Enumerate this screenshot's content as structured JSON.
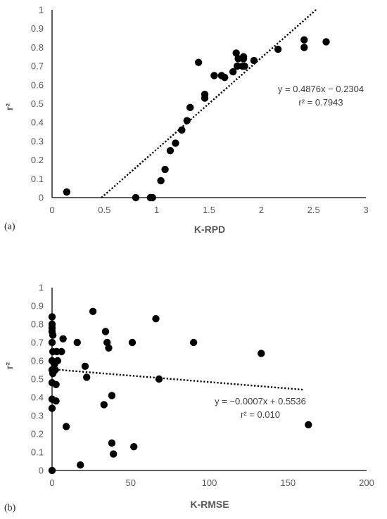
{
  "chart_data": [
    {
      "type": "scatter",
      "panel_label": "(a)",
      "xlabel": "K-RPD",
      "ylabel": "r²",
      "xlim": [
        0,
        3
      ],
      "ylim": [
        0,
        1
      ],
      "x_ticks": [
        "0",
        "0.5",
        "1",
        "1.5",
        "2",
        "2.5",
        "3"
      ],
      "y_ticks": [
        "0",
        "0.1",
        "0.2",
        "0.3",
        "0.4",
        "0.5",
        "0.6",
        "0.7",
        "0.8",
        "0.9",
        "1"
      ],
      "grid": false,
      "trendline": {
        "slope": 0.4876,
        "intercept": -0.2304,
        "style": "dotted"
      },
      "equation": "y = 0.4876x − 0.2304",
      "r2_text": "r² = 0.7943",
      "points": [
        {
          "x": 0.14,
          "y": 0.03
        },
        {
          "x": 0.8,
          "y": 0.0
        },
        {
          "x": 0.94,
          "y": 0.0
        },
        {
          "x": 0.96,
          "y": 0.0
        },
        {
          "x": 1.04,
          "y": 0.09
        },
        {
          "x": 1.08,
          "y": 0.15
        },
        {
          "x": 1.13,
          "y": 0.25
        },
        {
          "x": 1.18,
          "y": 0.29
        },
        {
          "x": 1.24,
          "y": 0.36
        },
        {
          "x": 1.29,
          "y": 0.41
        },
        {
          "x": 1.32,
          "y": 0.48
        },
        {
          "x": 1.4,
          "y": 0.72
        },
        {
          "x": 1.46,
          "y": 0.53
        },
        {
          "x": 1.46,
          "y": 0.55
        },
        {
          "x": 1.55,
          "y": 0.65
        },
        {
          "x": 1.62,
          "y": 0.65
        },
        {
          "x": 1.65,
          "y": 0.64
        },
        {
          "x": 1.73,
          "y": 0.67
        },
        {
          "x": 1.76,
          "y": 0.77
        },
        {
          "x": 1.77,
          "y": 0.7
        },
        {
          "x": 1.78,
          "y": 0.74
        },
        {
          "x": 1.82,
          "y": 0.7
        },
        {
          "x": 1.83,
          "y": 0.74
        },
        {
          "x": 1.83,
          "y": 0.75
        },
        {
          "x": 1.84,
          "y": 0.7
        },
        {
          "x": 1.93,
          "y": 0.73
        },
        {
          "x": 2.16,
          "y": 0.79
        },
        {
          "x": 2.41,
          "y": 0.84
        },
        {
          "x": 2.41,
          "y": 0.8
        },
        {
          "x": 2.62,
          "y": 0.83
        }
      ]
    },
    {
      "type": "scatter",
      "panel_label": "(b)",
      "xlabel": "K-RMSE",
      "ylabel": "r²",
      "xlim": [
        0,
        200
      ],
      "ylim": [
        0,
        1
      ],
      "x_ticks": [
        "0",
        "50",
        "100",
        "150",
        "200"
      ],
      "y_ticks": [
        "0",
        "0.1",
        "0.2",
        "0.3",
        "0.4",
        "0.5",
        "0.6",
        "0.7",
        "0.8",
        "0.9",
        "1"
      ],
      "grid": false,
      "trendline": {
        "slope": -0.0007,
        "intercept": 0.5536,
        "style": "dotted",
        "x_range": [
          0,
          160
        ]
      },
      "equation": "y = −0.0007x + 0.5536",
      "r2_text": "r² = 0.010",
      "points": [
        {
          "x": 0,
          "y": 0.84
        },
        {
          "x": 0,
          "y": 0.8
        },
        {
          "x": 0,
          "y": 0.78
        },
        {
          "x": 0,
          "y": 0.76
        },
        {
          "x": 0.5,
          "y": 0.74
        },
        {
          "x": 0,
          "y": 0.7
        },
        {
          "x": 0.5,
          "y": 0.65
        },
        {
          "x": 0,
          "y": 0.6
        },
        {
          "x": 0,
          "y": 0.55
        },
        {
          "x": 0.5,
          "y": 0.53
        },
        {
          "x": 0,
          "y": 0.48
        },
        {
          "x": 0,
          "y": 0.39
        },
        {
          "x": 0,
          "y": 0.34
        },
        {
          "x": 0,
          "y": 0.0
        },
        {
          "x": 1.5,
          "y": 0.58
        },
        {
          "x": 2,
          "y": 0.55
        },
        {
          "x": 2.5,
          "y": 0.47
        },
        {
          "x": 2.5,
          "y": 0.38
        },
        {
          "x": 3,
          "y": 0.65
        },
        {
          "x": 3.5,
          "y": 0.6
        },
        {
          "x": 6,
          "y": 0.65
        },
        {
          "x": 7,
          "y": 0.72
        },
        {
          "x": 9,
          "y": 0.24
        },
        {
          "x": 16,
          "y": 0.7
        },
        {
          "x": 18,
          "y": 0.03
        },
        {
          "x": 21,
          "y": 0.57
        },
        {
          "x": 22,
          "y": 0.51
        },
        {
          "x": 26,
          "y": 0.87
        },
        {
          "x": 33,
          "y": 0.36
        },
        {
          "x": 34,
          "y": 0.76
        },
        {
          "x": 35,
          "y": 0.7
        },
        {
          "x": 36,
          "y": 0.67
        },
        {
          "x": 38,
          "y": 0.41
        },
        {
          "x": 38,
          "y": 0.15
        },
        {
          "x": 39,
          "y": 0.09
        },
        {
          "x": 51,
          "y": 0.7
        },
        {
          "x": 52,
          "y": 0.13
        },
        {
          "x": 66,
          "y": 0.83
        },
        {
          "x": 68,
          "y": 0.5
        },
        {
          "x": 90,
          "y": 0.7
        },
        {
          "x": 133,
          "y": 0.64
        },
        {
          "x": 163,
          "y": 0.25
        }
      ]
    }
  ]
}
